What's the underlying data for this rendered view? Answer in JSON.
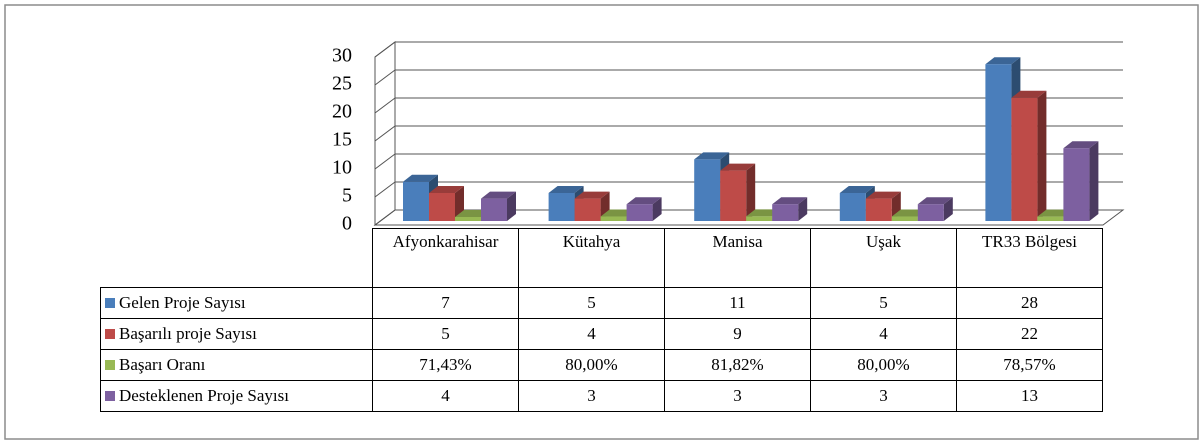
{
  "chart_data": {
    "type": "bar3d",
    "categories": [
      "Afyonkarahisar",
      "Kütahya",
      "Manisa",
      "Uşak",
      "TR33 Bölgesi"
    ],
    "series": [
      {
        "name": "Gelen Proje Sayısı",
        "color": "#4a7ebb",
        "values": [
          7,
          5,
          11,
          5,
          28
        ]
      },
      {
        "name": "Başarılı proje Sayısı",
        "color": "#be4b48",
        "values": [
          5,
          4,
          9,
          4,
          22
        ]
      },
      {
        "name": "Başarı Oranı",
        "color": "#98b954",
        "values": [
          0.7143,
          0.8,
          0.8182,
          0.8,
          0.7857
        ],
        "value_labels": [
          "71,43%",
          "80,00%",
          "81,82%",
          "80,00%",
          "78,57%"
        ]
      },
      {
        "name": "Desteklenen Proje Sayısı",
        "color": "#7d60a0",
        "values": [
          4,
          3,
          3,
          3,
          13
        ]
      }
    ],
    "ylim": [
      0,
      30
    ],
    "yticks": [
      0,
      5,
      10,
      15,
      20,
      25,
      30
    ],
    "grid": true,
    "data_table": true
  }
}
